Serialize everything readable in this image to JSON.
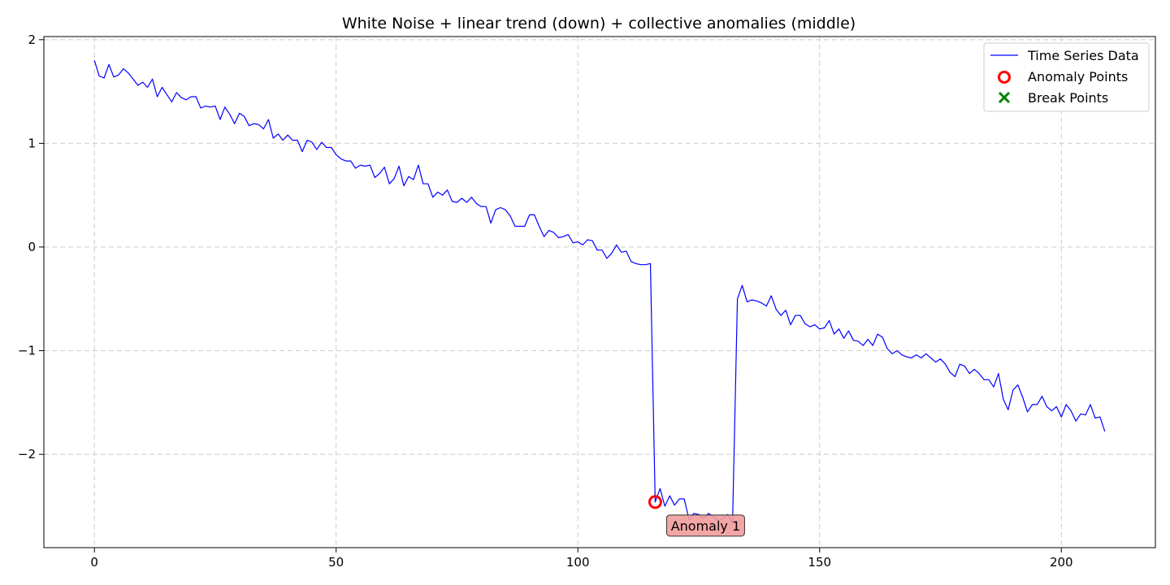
{
  "chart_data": {
    "type": "line",
    "title": "White Noise + linear trend (down) + collective anomalies (middle)",
    "xlabel": "",
    "ylabel": "",
    "xlim": [
      -10.45,
      219.45
    ],
    "ylim": [
      -2.9,
      2.03
    ],
    "grid": true,
    "grid_style": "dashed",
    "legend_position": "top-right",
    "x_ticks": [
      0,
      50,
      100,
      150,
      200
    ],
    "y_ticks": [
      -2,
      -1,
      0,
      1,
      2
    ],
    "x_tick_labels": [
      "0",
      "50",
      "100",
      "150",
      "200"
    ],
    "y_tick_labels": [
      "−2",
      "−1",
      "0",
      "1",
      "2"
    ],
    "series": [
      {
        "name": "Time Series Data",
        "color": "#0000ff",
        "x_start": 0,
        "x_step": 1,
        "values": [
          1.8,
          1.65,
          1.63,
          1.76,
          1.64,
          1.66,
          1.72,
          1.68,
          1.62,
          1.56,
          1.59,
          1.54,
          1.62,
          1.45,
          1.54,
          1.47,
          1.4,
          1.49,
          1.44,
          1.42,
          1.45,
          1.45,
          1.34,
          1.36,
          1.35,
          1.36,
          1.23,
          1.35,
          1.28,
          1.19,
          1.29,
          1.26,
          1.17,
          1.19,
          1.18,
          1.14,
          1.23,
          1.05,
          1.09,
          1.03,
          1.08,
          1.03,
          1.03,
          0.92,
          1.03,
          1.01,
          0.94,
          1.01,
          0.96,
          0.96,
          0.89,
          0.85,
          0.83,
          0.83,
          0.76,
          0.79,
          0.78,
          0.79,
          0.67,
          0.71,
          0.77,
          0.61,
          0.66,
          0.78,
          0.59,
          0.68,
          0.65,
          0.79,
          0.61,
          0.61,
          0.48,
          0.53,
          0.5,
          0.55,
          0.44,
          0.43,
          0.47,
          0.43,
          0.48,
          0.42,
          0.39,
          0.39,
          0.23,
          0.36,
          0.38,
          0.36,
          0.3,
          0.2,
          0.2,
          0.2,
          0.31,
          0.31,
          0.2,
          0.1,
          0.16,
          0.14,
          0.09,
          0.1,
          0.12,
          0.04,
          0.05,
          0.02,
          0.07,
          0.06,
          -0.03,
          -0.03,
          -0.11,
          -0.06,
          0.02,
          -0.05,
          -0.04,
          -0.14,
          -0.16,
          -0.17,
          -0.17,
          -0.16,
          -2.46,
          -2.33,
          -2.5,
          -2.4,
          -2.49,
          -2.43,
          -2.43,
          -2.63,
          -2.57,
          -2.58,
          -2.62,
          -2.57,
          -2.6,
          -2.64,
          -2.62,
          -2.58,
          -2.66,
          -0.5,
          -0.37,
          -0.53,
          -0.51,
          -0.52,
          -0.54,
          -0.57,
          -0.47,
          -0.6,
          -0.66,
          -0.61,
          -0.75,
          -0.66,
          -0.66,
          -0.74,
          -0.77,
          -0.75,
          -0.79,
          -0.78,
          -0.71,
          -0.84,
          -0.79,
          -0.88,
          -0.81,
          -0.9,
          -0.91,
          -0.95,
          -0.89,
          -0.95,
          -0.84,
          -0.87,
          -0.98,
          -1.03,
          -1.0,
          -1.04,
          -1.06,
          -1.07,
          -1.04,
          -1.07,
          -1.03,
          -1.07,
          -1.11,
          -1.08,
          -1.13,
          -1.21,
          -1.25,
          -1.13,
          -1.15,
          -1.22,
          -1.18,
          -1.22,
          -1.28,
          -1.28,
          -1.35,
          -1.22,
          -1.47,
          -1.57,
          -1.38,
          -1.33,
          -1.45,
          -1.59,
          -1.52,
          -1.52,
          -1.44,
          -1.54,
          -1.58,
          -1.54,
          -1.64,
          -1.52,
          -1.58,
          -1.68,
          -1.61,
          -1.62,
          -1.52,
          -1.65,
          -1.64,
          -1.78
        ]
      }
    ],
    "legend": [
      {
        "label": "Time Series Data",
        "kind": "line",
        "color": "#0000ff"
      },
      {
        "label": "Anomaly Points",
        "kind": "circle",
        "color": "#ff0000"
      },
      {
        "label": "Break Points",
        "kind": "cross",
        "color": "#008000"
      }
    ],
    "anomaly_points": [
      {
        "x": 116,
        "y": -2.46
      }
    ],
    "break_points": [],
    "annotations": [
      {
        "text": "Anomaly 1",
        "x": 116,
        "y": -2.46,
        "box_color": "#f19c9c"
      }
    ]
  }
}
